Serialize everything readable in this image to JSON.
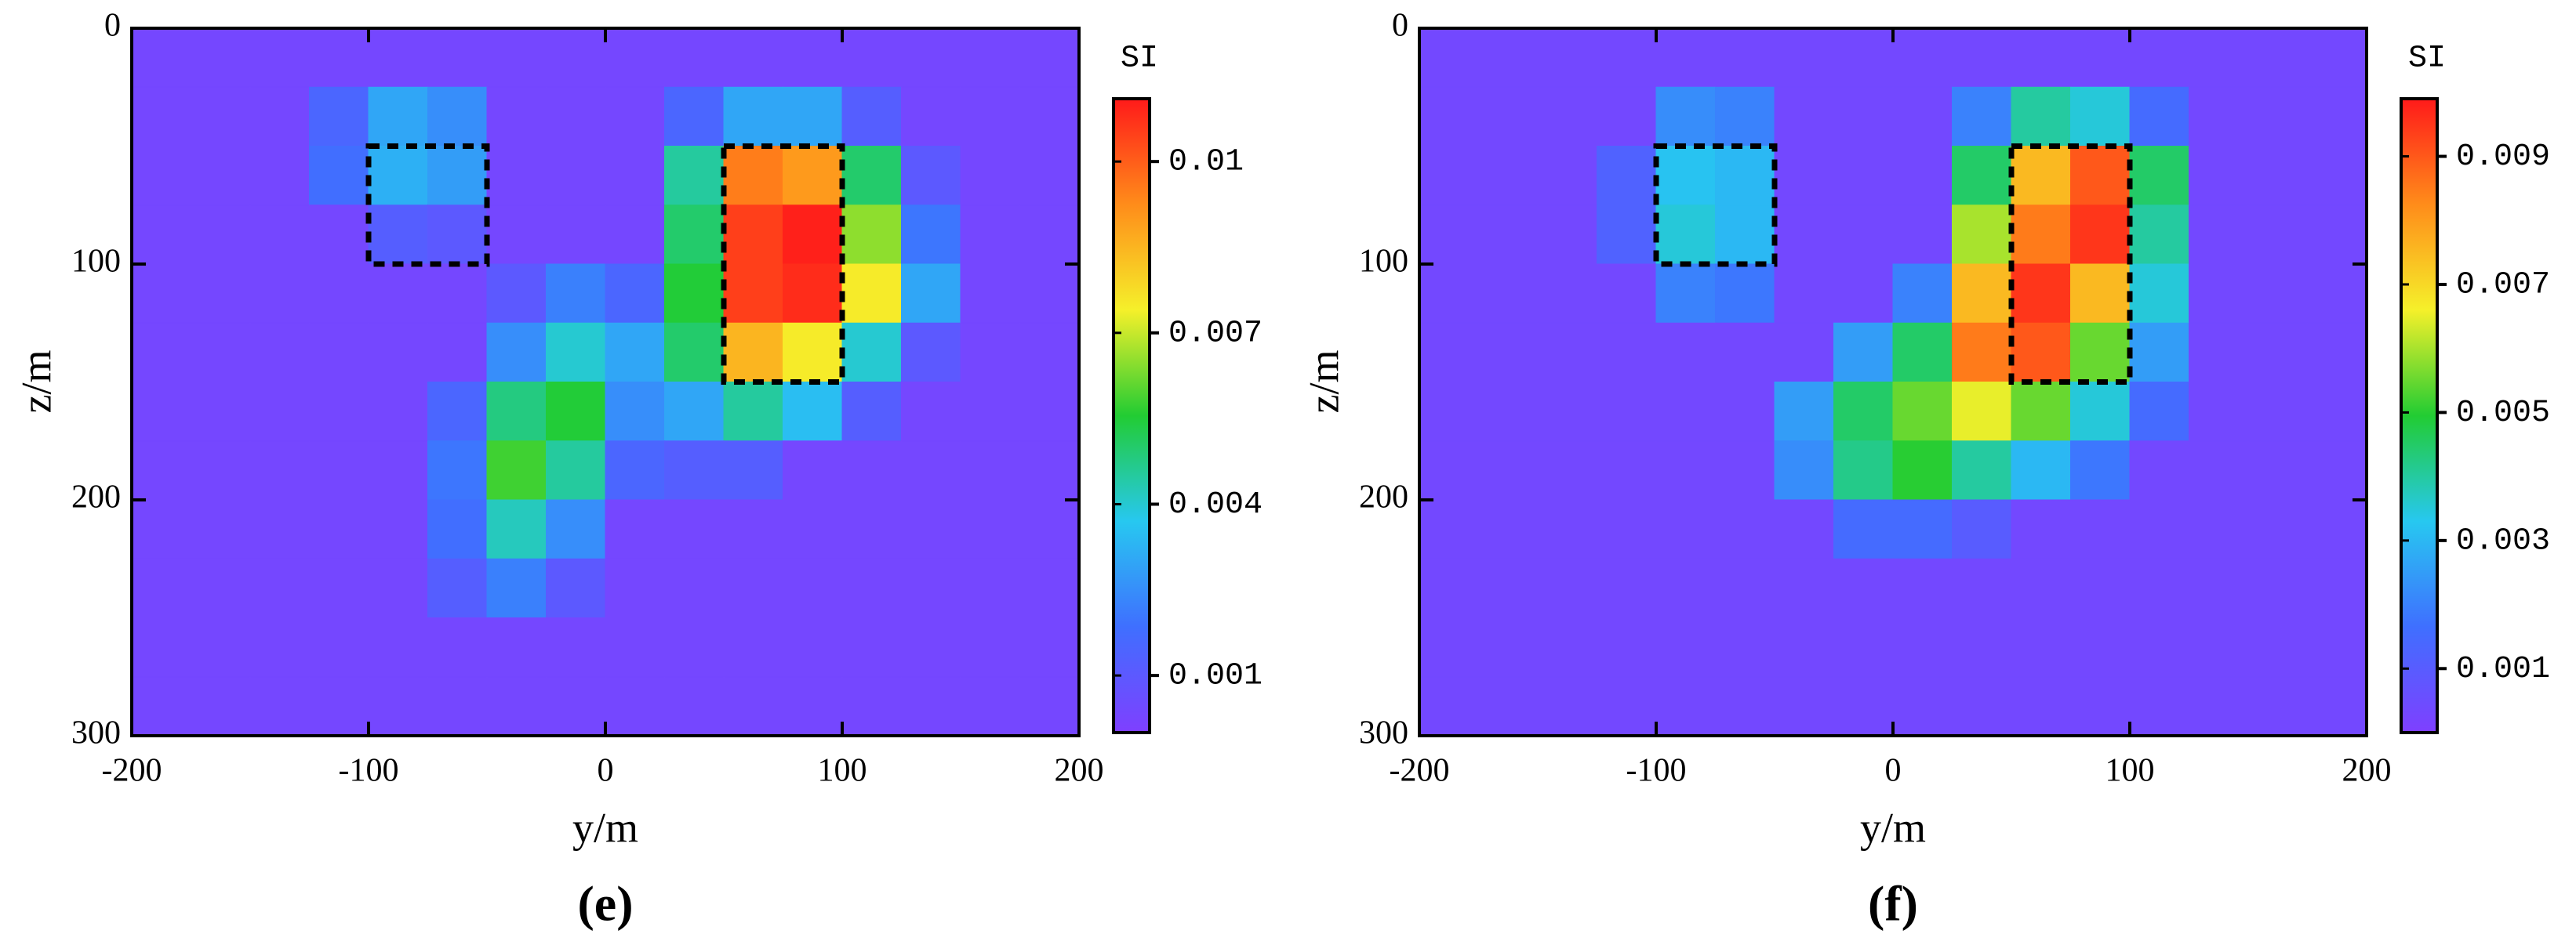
{
  "chart_data": [
    {
      "type": "heatmap",
      "label": "(e)",
      "xlabel": "y/m",
      "ylabel": "z/m",
      "colorbar_title": "SI",
      "xlim": [
        -200,
        200
      ],
      "xticks": [
        -200,
        -100,
        0,
        100,
        200
      ],
      "ylim": [
        300,
        0
      ],
      "yticks": [
        0,
        100,
        200,
        300
      ],
      "clim": [
        0,
        0.0111
      ],
      "cticks": [
        0.001,
        0.004,
        0.007,
        0.01
      ],
      "colormap": [
        "#7f3fff",
        "#3f6fff",
        "#27c8f0",
        "#22cc33",
        "#f5f02a",
        "#ff8c1a",
        "#ff1a1a"
      ],
      "box_color": "#000000",
      "boxes": [
        {
          "x": [
            -100,
            -50
          ],
          "z": [
            50,
            100
          ]
        },
        {
          "x": [
            50,
            100
          ],
          "z": [
            50,
            150
          ]
        }
      ],
      "x_edges": [
        -200,
        -175,
        -150,
        -125,
        -100,
        -75,
        -50,
        -25,
        0,
        25,
        50,
        75,
        100,
        125,
        150,
        175,
        200
      ],
      "z_edges": [
        0,
        25,
        50,
        75,
        100,
        125,
        150,
        175,
        200,
        225,
        250,
        275,
        300
      ],
      "values": [
        [
          0.0003,
          0.0003,
          0.0003,
          0.0003,
          0.0003,
          0.0003,
          0.0003,
          0.0003,
          0.0003,
          0.0003,
          0.0003,
          0.0003,
          0.0003,
          0.0003,
          0.0003,
          0.0003
        ],
        [
          0.0003,
          0.0003,
          0.0003,
          0.0015,
          0.003,
          0.0025,
          0.0003,
          0.0003,
          0.0003,
          0.0015,
          0.003,
          0.003,
          0.0012,
          0.0003,
          0.0003,
          0.0003
        ],
        [
          0.0003,
          0.0003,
          0.0003,
          0.0018,
          0.0032,
          0.0028,
          0.0003,
          0.0003,
          0.0003,
          0.0045,
          0.0095,
          0.009,
          0.005,
          0.001,
          0.0003,
          0.0003
        ],
        [
          0.0003,
          0.0003,
          0.0003,
          0.0003,
          0.0012,
          0.001,
          0.0003,
          0.0003,
          0.0003,
          0.005,
          0.0105,
          0.011,
          0.0065,
          0.002,
          0.0003,
          0.0003
        ],
        [
          0.0003,
          0.0003,
          0.0003,
          0.0003,
          0.0003,
          0.0003,
          0.001,
          0.0022,
          0.0015,
          0.0055,
          0.0105,
          0.0108,
          0.0075,
          0.003,
          0.0003,
          0.0003
        ],
        [
          0.0003,
          0.0003,
          0.0003,
          0.0003,
          0.0003,
          0.0003,
          0.0025,
          0.004,
          0.003,
          0.005,
          0.0085,
          0.0075,
          0.004,
          0.001,
          0.0003,
          0.0003
        ],
        [
          0.0003,
          0.0003,
          0.0003,
          0.0003,
          0.0003,
          0.0015,
          0.0048,
          0.0055,
          0.0025,
          0.003,
          0.0045,
          0.0035,
          0.0012,
          0.0003,
          0.0003,
          0.0003
        ],
        [
          0.0003,
          0.0003,
          0.0003,
          0.0003,
          0.0003,
          0.002,
          0.0058,
          0.0045,
          0.0015,
          0.0012,
          0.0012,
          0.0003,
          0.0003,
          0.0003,
          0.0003,
          0.0003
        ],
        [
          0.0003,
          0.0003,
          0.0003,
          0.0003,
          0.0003,
          0.0018,
          0.0042,
          0.0025,
          0.0003,
          0.0003,
          0.0003,
          0.0003,
          0.0003,
          0.0003,
          0.0003,
          0.0003
        ],
        [
          0.0003,
          0.0003,
          0.0003,
          0.0003,
          0.0003,
          0.0012,
          0.0022,
          0.001,
          0.0003,
          0.0003,
          0.0003,
          0.0003,
          0.0003,
          0.0003,
          0.0003,
          0.0003
        ],
        [
          0.0003,
          0.0003,
          0.0003,
          0.0003,
          0.0003,
          0.0003,
          0.0003,
          0.0003,
          0.0003,
          0.0003,
          0.0003,
          0.0003,
          0.0003,
          0.0003,
          0.0003,
          0.0003
        ],
        [
          0.0003,
          0.0003,
          0.0003,
          0.0003,
          0.0003,
          0.0003,
          0.0003,
          0.0003,
          0.0003,
          0.0003,
          0.0003,
          0.0003,
          0.0003,
          0.0003,
          0.0003,
          0.0003
        ]
      ]
    },
    {
      "type": "heatmap",
      "label": "(f)",
      "xlabel": "y/m",
      "ylabel": "z/m",
      "colorbar_title": "SI",
      "xlim": [
        -200,
        200
      ],
      "xticks": [
        -200,
        -100,
        0,
        100,
        200
      ],
      "ylim": [
        300,
        0
      ],
      "yticks": [
        0,
        100,
        200,
        300
      ],
      "clim": [
        0,
        0.0099
      ],
      "cticks": [
        0.001,
        0.003,
        0.005,
        0.007,
        0.009
      ],
      "colormap": [
        "#7f3fff",
        "#3f6fff",
        "#27c8f0",
        "#22cc33",
        "#f5f02a",
        "#ff8c1a",
        "#ff1a1a"
      ],
      "box_color": "#000000",
      "boxes": [
        {
          "x": [
            -100,
            -50
          ],
          "z": [
            50,
            100
          ]
        },
        {
          "x": [
            50,
            100
          ],
          "z": [
            50,
            150
          ]
        }
      ],
      "x_edges": [
        -200,
        -175,
        -150,
        -125,
        -100,
        -75,
        -50,
        -25,
        0,
        25,
        50,
        75,
        100,
        125,
        150,
        175,
        200
      ],
      "z_edges": [
        0,
        25,
        50,
        75,
        100,
        125,
        150,
        175,
        200,
        225,
        250,
        275,
        300
      ],
      "values": [
        [
          0.0003,
          0.0003,
          0.0003,
          0.0003,
          0.0003,
          0.0003,
          0.0003,
          0.0003,
          0.0003,
          0.0003,
          0.0003,
          0.0003,
          0.0003,
          0.0003,
          0.0003,
          0.0003
        ],
        [
          0.0003,
          0.0003,
          0.0003,
          0.0003,
          0.0022,
          0.002,
          0.0003,
          0.0003,
          0.0003,
          0.002,
          0.004,
          0.0035,
          0.0015,
          0.0003,
          0.0003,
          0.0003
        ],
        [
          0.0003,
          0.0003,
          0.0003,
          0.0012,
          0.0032,
          0.003,
          0.0003,
          0.0003,
          0.0003,
          0.0045,
          0.0075,
          0.009,
          0.0045,
          0.0003,
          0.0003,
          0.0003
        ],
        [
          0.0003,
          0.0003,
          0.0003,
          0.0012,
          0.0035,
          0.003,
          0.0003,
          0.0003,
          0.0003,
          0.006,
          0.0085,
          0.0095,
          0.004,
          0.0003,
          0.0003,
          0.0003
        ],
        [
          0.0003,
          0.0003,
          0.0003,
          0.0003,
          0.002,
          0.0018,
          0.0003,
          0.0003,
          0.002,
          0.0075,
          0.0095,
          0.0075,
          0.0035,
          0.0003,
          0.0003,
          0.0003
        ],
        [
          0.0003,
          0.0003,
          0.0003,
          0.0003,
          0.0003,
          0.0003,
          0.0003,
          0.0025,
          0.0045,
          0.0085,
          0.009,
          0.0055,
          0.0025,
          0.0003,
          0.0003,
          0.0003
        ],
        [
          0.0003,
          0.0003,
          0.0003,
          0.0003,
          0.0003,
          0.0003,
          0.0025,
          0.0045,
          0.0055,
          0.0065,
          0.0055,
          0.0035,
          0.0015,
          0.0003,
          0.0003,
          0.0003
        ],
        [
          0.0003,
          0.0003,
          0.0003,
          0.0003,
          0.0003,
          0.0003,
          0.0022,
          0.0042,
          0.005,
          0.004,
          0.003,
          0.0018,
          0.0003,
          0.0003,
          0.0003,
          0.0003
        ],
        [
          0.0003,
          0.0003,
          0.0003,
          0.0003,
          0.0003,
          0.0003,
          0.0003,
          0.0015,
          0.0015,
          0.001,
          0.0003,
          0.0003,
          0.0003,
          0.0003,
          0.0003,
          0.0003
        ],
        [
          0.0003,
          0.0003,
          0.0003,
          0.0003,
          0.0003,
          0.0003,
          0.0003,
          0.0003,
          0.0003,
          0.0003,
          0.0003,
          0.0003,
          0.0003,
          0.0003,
          0.0003,
          0.0003
        ],
        [
          0.0003,
          0.0003,
          0.0003,
          0.0003,
          0.0003,
          0.0003,
          0.0003,
          0.0003,
          0.0003,
          0.0003,
          0.0003,
          0.0003,
          0.0003,
          0.0003,
          0.0003,
          0.0003
        ],
        [
          0.0003,
          0.0003,
          0.0003,
          0.0003,
          0.0003,
          0.0003,
          0.0003,
          0.0003,
          0.0003,
          0.0003,
          0.0003,
          0.0003,
          0.0003,
          0.0003,
          0.0003,
          0.0003
        ]
      ]
    }
  ]
}
